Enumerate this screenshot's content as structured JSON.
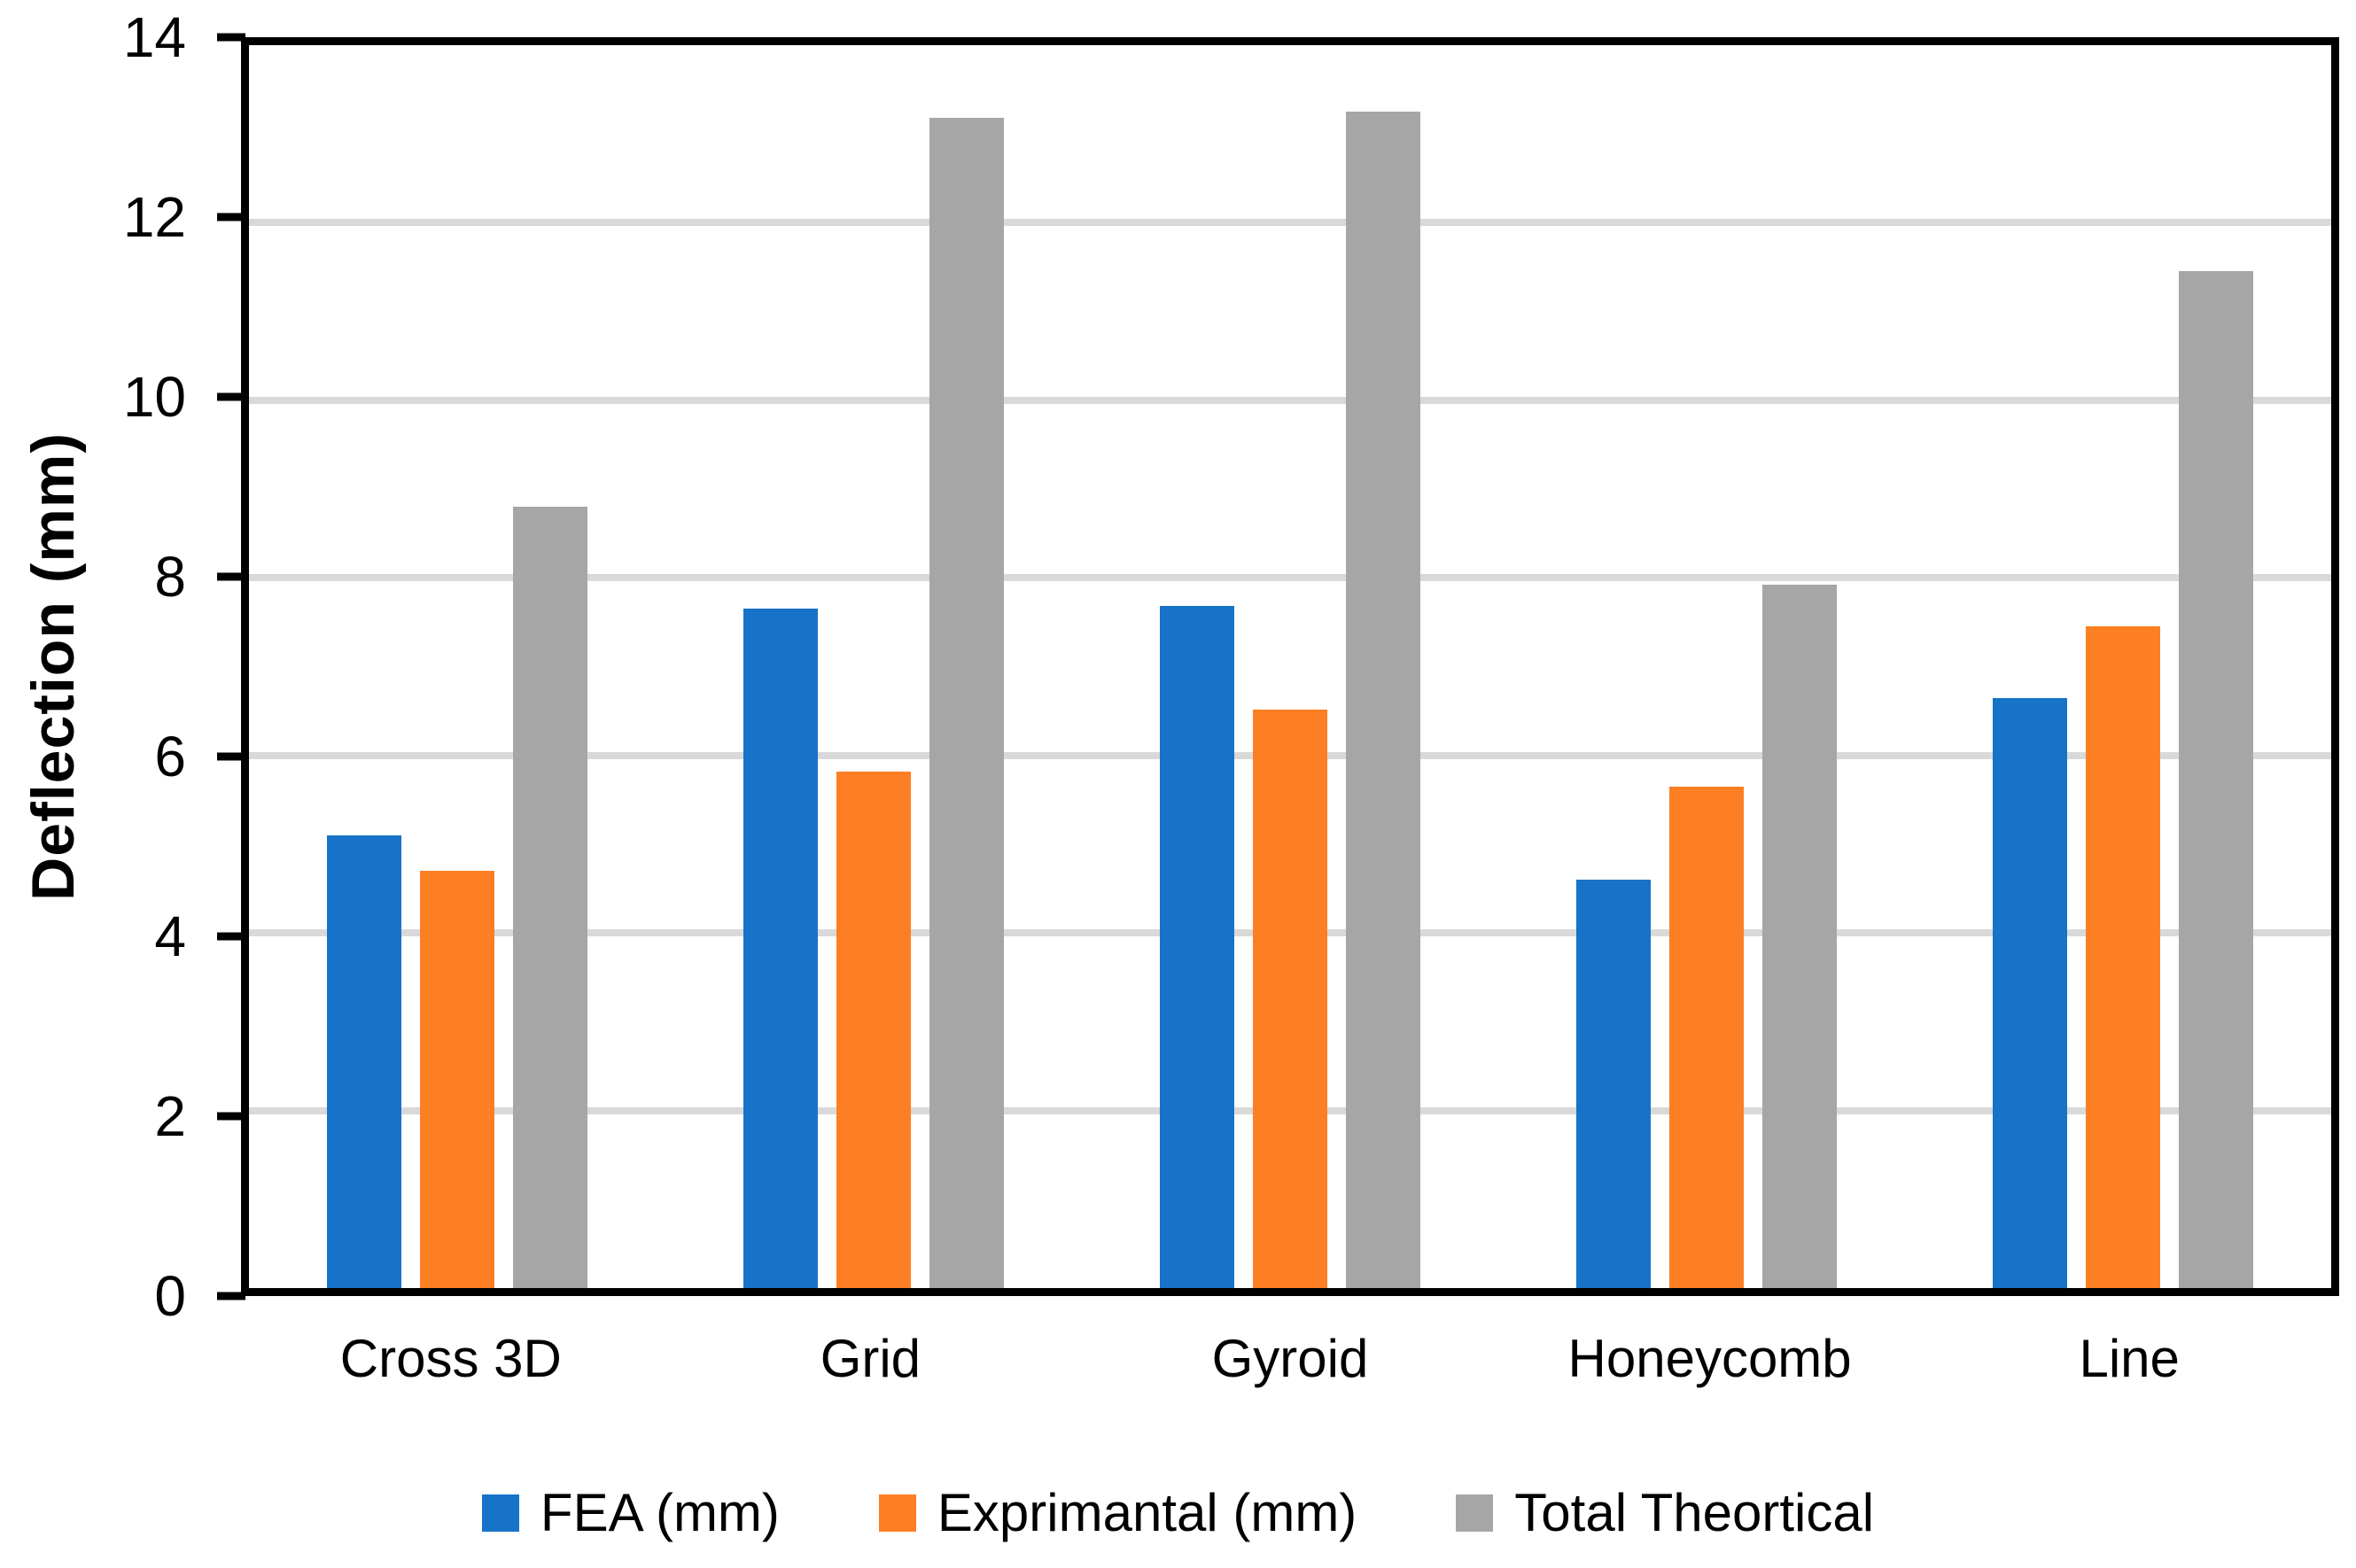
{
  "chart_data": {
    "type": "bar",
    "title": "",
    "xlabel": "",
    "ylabel": "Deflection (mm)",
    "ylim": [
      0,
      14
    ],
    "yticks": [
      0,
      2,
      4,
      6,
      8,
      10,
      12,
      14
    ],
    "grid": true,
    "legend_position": "bottom",
    "categories": [
      "Cross 3D",
      "Grid",
      "Gyroid",
      "Honeycomb",
      "Line"
    ],
    "series": [
      {
        "name": "FEA (mm)",
        "color": "#1773C7",
        "values": [
          5.1,
          7.65,
          7.68,
          4.6,
          6.65
        ]
      },
      {
        "name": "Exprimantal (mm)",
        "color": "#FD7E23",
        "values": [
          4.7,
          5.82,
          6.52,
          5.65,
          7.45
        ]
      },
      {
        "name": "Total Theortical",
        "color": "#A6A6A6",
        "values": [
          8.8,
          13.18,
          13.25,
          7.92,
          11.46
        ]
      }
    ],
    "colors": {
      "axis": "#000000",
      "gridline": "#D9D9D9",
      "tick_text": "#000000",
      "background": "#FFFFFF"
    }
  }
}
